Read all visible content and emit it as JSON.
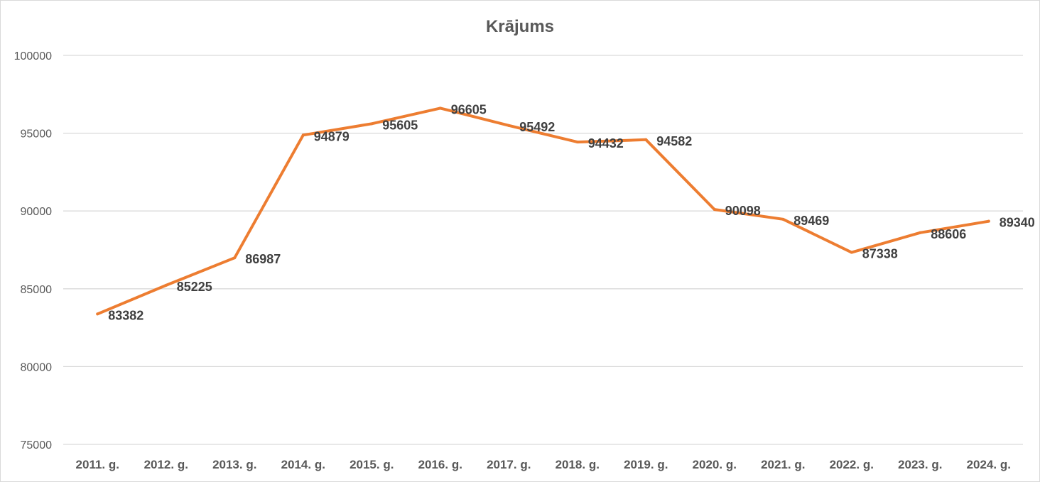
{
  "chart_data": {
    "type": "line",
    "title": "Krājums",
    "xlabel": "",
    "ylabel": "",
    "categories": [
      "2011. g.",
      "2012. g.",
      "2013. g.",
      "2014. g.",
      "2015. g.",
      "2016. g.",
      "2017. g.",
      "2018. g.",
      "2019. g.",
      "2020. g.",
      "2021. g.",
      "2022. g.",
      "2023. g.",
      "2024. g."
    ],
    "series": [
      {
        "values": [
          83382,
          85225,
          86987,
          94879,
          95605,
          96605,
          95492,
          94432,
          94582,
          90098,
          89469,
          87338,
          88606,
          89340
        ]
      }
    ],
    "ylim": [
      75000,
      100000
    ],
    "yticks": [
      75000,
      80000,
      85000,
      90000,
      95000,
      100000
    ],
    "grid": true,
    "legend": "none",
    "data_labels": true,
    "line_color": "#ED7D31"
  }
}
